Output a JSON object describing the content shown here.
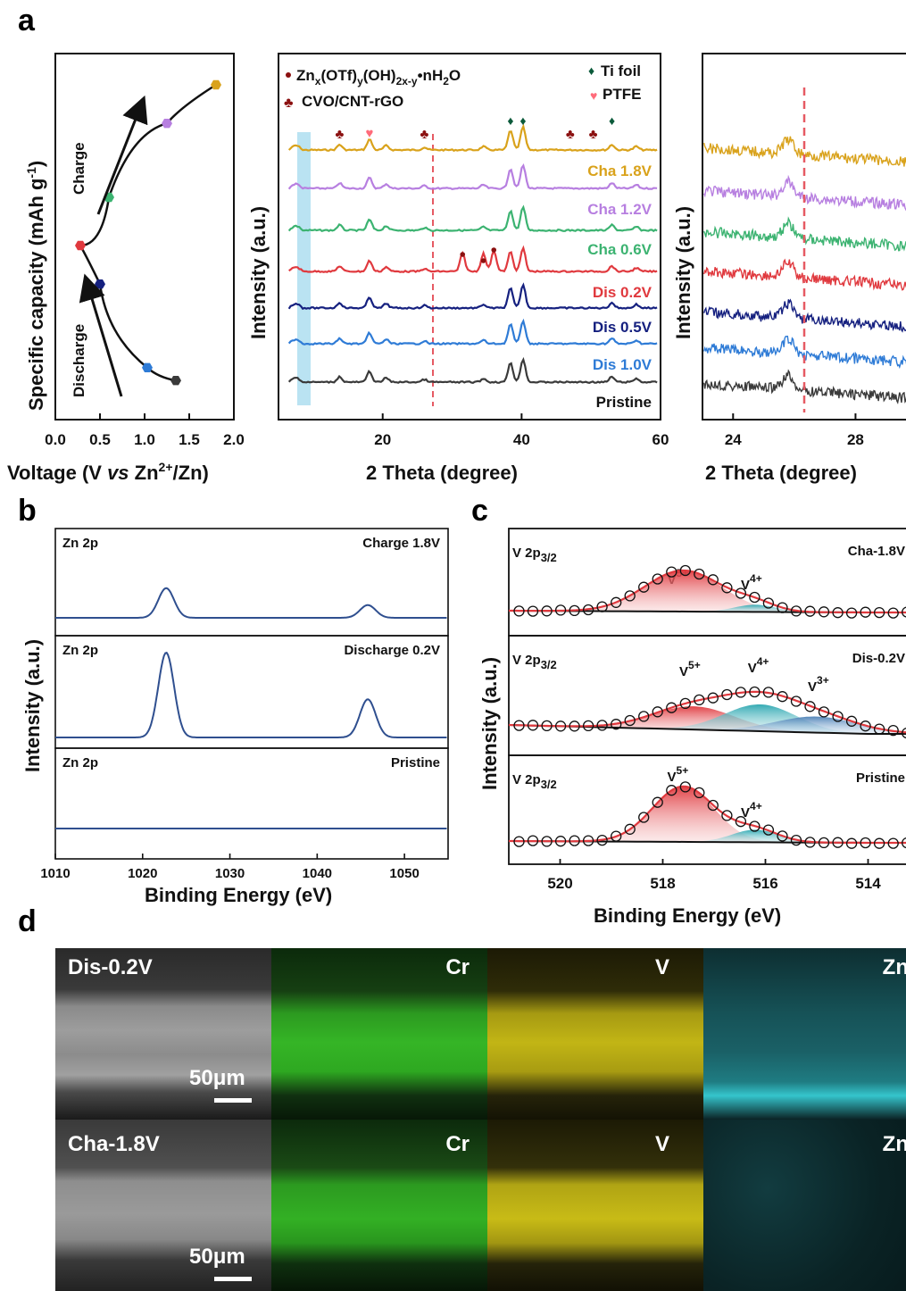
{
  "panels": {
    "a": "a",
    "b": "b",
    "c": "c",
    "d": "d"
  },
  "colors": {
    "cha18": "#d9a21b",
    "cha12": "#b77fe0",
    "cha06": "#3cb371",
    "dis02": "#e0393e",
    "dis05": "#15207f",
    "dis10": "#2e7bd6",
    "pristine": "#3a3a3a",
    "xps": "#2f4f8f",
    "red": "#e0393e",
    "teal": "#2aa6b0",
    "darkred": "#8b1010",
    "green": "#0b5a3a",
    "pink": "#ff6b7a"
  },
  "chart_data": [
    {
      "type": "scatter",
      "panel": "a-left",
      "xlabel_pre": "Voltage (V ",
      "xlabel_vs": "vs",
      "xlabel_mid": " Zn",
      "xlabel_sup": "2+",
      "xlabel_post": "/Zn)",
      "ylabel": "Specific capacity (mAh g",
      "ylabel_sup": "-1",
      "ylabel_post": ")",
      "xlim": [
        0,
        2.0
      ],
      "xticks": [
        "0.0",
        "0.5",
        "1.0",
        "1.5",
        "2.0"
      ],
      "annotations": [
        "Charge",
        "Discharge"
      ],
      "points": [
        {
          "x": 1.35,
          "y": 0.08,
          "state": "Pristine"
        },
        {
          "x": 1.03,
          "y": 0.12,
          "state": "Dis 1.0V"
        },
        {
          "x": 0.5,
          "y": 0.38,
          "state": "Dis 0.5V"
        },
        {
          "x": 0.28,
          "y": 0.5,
          "state": "Dis 0.2V"
        },
        {
          "x": 0.6,
          "y": 0.65,
          "state": "Cha 0.6V"
        },
        {
          "x": 1.25,
          "y": 0.88,
          "state": "Cha 1.2V"
        },
        {
          "x": 1.8,
          "y": 1.0,
          "state": "Cha 1.8V"
        }
      ]
    },
    {
      "type": "line",
      "panel": "a-middle",
      "xlabel": "2 Theta (degree)",
      "ylabel": "Intensity (a.u.)",
      "xlim": [
        5,
        60
      ],
      "xticks": [
        "20",
        "40",
        "60"
      ],
      "legend": {
        "znotf_pre": "Zn",
        "znotf_s1": "x",
        "znotf_m1": "(OTf)",
        "znotf_s2": "y",
        "znotf_m2": "(OH)",
        "znotf_s3": "2x-y",
        "znotf_m3": "•nH",
        "znotf_s4": "2",
        "znotf_end": "O",
        "cvo": "CVO/CNT-rGO",
        "ti": "Ti foil",
        "ptfe": "PTFE"
      },
      "series": [
        {
          "name": "Cha 1.8V"
        },
        {
          "name": "Cha 1.2V"
        },
        {
          "name": "Cha 0.6V"
        },
        {
          "name": "Dis 0.2V"
        },
        {
          "name": "Dis 0.5V"
        },
        {
          "name": "Dis 1.0V"
        },
        {
          "name": "Pristine"
        }
      ],
      "peaks_2theta": {
        "cvo": [
          13.8,
          26.0,
          47.0,
          50.3
        ],
        "ptfe": [
          18.1
        ],
        "ti": [
          38.4,
          40.2,
          53.0
        ],
        "znotf": [
          31.5,
          34.5,
          36.0
        ]
      }
    },
    {
      "type": "line",
      "panel": "a-right",
      "xlabel": "2 Theta (degree)",
      "ylabel": "Intensity (a.u.)",
      "xlim": [
        23,
        30
      ],
      "xticks": [
        "24",
        "28"
      ],
      "peak_2theta": 25.8
    },
    {
      "type": "line",
      "panel": "b",
      "xlabel": "Binding Energy (eV)",
      "ylabel": "Intensity (a.u.)",
      "xlim": [
        1010,
        1055
      ],
      "xticks": [
        "1010",
        "1020",
        "1030",
        "1040",
        "1050"
      ],
      "subplots": [
        {
          "element": "Zn 2p",
          "state": "Charge 1.8V",
          "peaks": [
            1022.7,
            1045.8
          ],
          "heights": [
            0.35,
            0.15
          ]
        },
        {
          "element": "Zn 2p",
          "state": "Discharge 0.2V",
          "peaks": [
            1022.7,
            1045.8
          ],
          "heights": [
            1.0,
            0.45
          ]
        },
        {
          "element": "Zn 2p",
          "state": "Pristine",
          "peaks": [],
          "heights": []
        }
      ]
    },
    {
      "type": "line",
      "panel": "c",
      "xlabel": "Binding Energy (eV)",
      "ylabel": "Intensity (a.u.)",
      "xlim": [
        521,
        513
      ],
      "xticks": [
        "520",
        "518",
        "516",
        "514"
      ],
      "subplots": [
        {
          "orbital": "V 2p",
          "orbital_sub": "3/2",
          "state": "Cha-1.8V",
          "components": [
            {
              "label": "V",
              "sup": "5+",
              "center": 517.6
            },
            {
              "label": "V",
              "sup": "4+",
              "center": 516.2
            }
          ]
        },
        {
          "orbital": "V 2p",
          "orbital_sub": "3/2",
          "state": "Dis-0.2V",
          "components": [
            {
              "label": "V",
              "sup": "5+",
              "center": 517.4
            },
            {
              "label": "V",
              "sup": "4+",
              "center": 516.1
            },
            {
              "label": "V",
              "sup": "3+",
              "center": 515.0
            }
          ]
        },
        {
          "orbital": "V 2p",
          "orbital_sub": "3/2",
          "state": "Pristine",
          "components": [
            {
              "label": "V",
              "sup": "5+",
              "center": 517.6
            },
            {
              "label": "V",
              "sup": "4+",
              "center": 516.2
            }
          ]
        }
      ]
    }
  ],
  "panel_d": {
    "rows": [
      {
        "state": "Dis-0.2V",
        "scale": "50μm",
        "maps": [
          "Cr",
          "V",
          "Zn"
        ]
      },
      {
        "state": "Cha-1.8V",
        "scale": "50μm",
        "maps": [
          "Cr",
          "V",
          "Zn"
        ]
      }
    ]
  }
}
